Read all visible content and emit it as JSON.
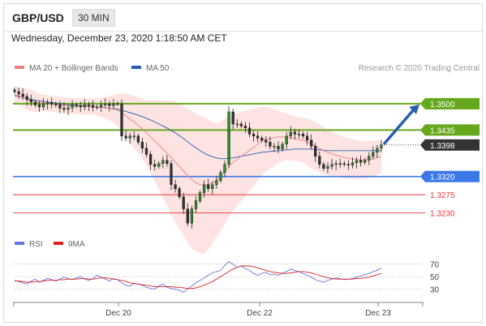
{
  "header": {
    "symbol": "GBP/USD",
    "timeframe": "30 MIN"
  },
  "datetime": "Wednesday, December 23, 2020 1:18:50 AM CET",
  "legend": {
    "ma20_label": "MA 20 + Bollinger Bands",
    "ma50_label": "MA 50",
    "credit": "Research © 2020 Trading Central"
  },
  "rsi_legend": {
    "rsi_label": "RSI",
    "ma_label": "9MA"
  },
  "colors": {
    "resistance": "#66a81c",
    "current": "#333333",
    "pivot": "#3b78e7",
    "support": "#e53935",
    "arrow": "#2a5db0",
    "ma20": "#f08080",
    "ma50": "#2a5db0",
    "band": "#fde0de",
    "rsi": "#6677dd",
    "rsi_ma": "#dd2222"
  },
  "chart_data": [
    {
      "type": "candlestick",
      "title": "GBP/USD",
      "timeframe": "30 MIN",
      "x_ticks": [
        "Dec 20",
        "Dec 22",
        "Dec 23"
      ],
      "y_range": [
        1.3185,
        1.356
      ],
      "levels": [
        {
          "label": "1.3500",
          "value": 1.35,
          "role": "resistance"
        },
        {
          "label": "1.3435",
          "value": 1.3435,
          "role": "resistance"
        },
        {
          "label": "1.3398",
          "value": 1.3398,
          "role": "current"
        },
        {
          "label": "1.3320",
          "value": 1.332,
          "role": "pivot"
        },
        {
          "label": "1.3275",
          "value": 1.3275,
          "role": "support"
        },
        {
          "label": "1.3230",
          "value": 1.323,
          "role": "support"
        }
      ],
      "close_series": [
        1.353,
        1.3524,
        1.3518,
        1.351,
        1.3504,
        1.3497,
        1.3492,
        1.35,
        1.3503,
        1.3499,
        1.3497,
        1.3489,
        1.3486,
        1.349,
        1.3497,
        1.3495,
        1.3492,
        1.3497,
        1.3496,
        1.3491,
        1.3492,
        1.3497,
        1.3499,
        1.3495,
        1.35,
        1.35,
        1.342,
        1.3415,
        1.342,
        1.342,
        1.3405,
        1.339,
        1.3375,
        1.335,
        1.3345,
        1.3352,
        1.336,
        1.3352,
        1.33,
        1.329,
        1.327,
        1.324,
        1.3205,
        1.324,
        1.326,
        1.328,
        1.33,
        1.329,
        1.33,
        1.331,
        1.333,
        1.335,
        1.348,
        1.345,
        1.345,
        1.3445,
        1.344,
        1.3425,
        1.342,
        1.3415,
        1.341,
        1.3405,
        1.3395,
        1.3395,
        1.3388,
        1.34,
        1.342,
        1.343,
        1.3425,
        1.3425,
        1.342,
        1.341,
        1.3395,
        1.337,
        1.335,
        1.334,
        1.3345,
        1.335,
        1.3352,
        1.3352,
        1.335,
        1.3348,
        1.3354,
        1.336,
        1.3355,
        1.336,
        1.337,
        1.338,
        1.339,
        1.3398
      ],
      "ma20_series": [
        1.3522,
        1.3519,
        1.3515,
        1.3512,
        1.3508,
        1.3505,
        1.3502,
        1.3502,
        1.3501,
        1.35,
        1.3499,
        1.3497,
        1.3496,
        1.3495,
        1.3495,
        1.3494,
        1.3494,
        1.3494,
        1.3493,
        1.3493,
        1.3492,
        1.3491,
        1.349,
        1.3489,
        1.3488,
        1.3484,
        1.3478,
        1.347,
        1.3462,
        1.3455,
        1.3447,
        1.3438,
        1.3428,
        1.3418,
        1.3408,
        1.3398,
        1.3388,
        1.3378,
        1.3367,
        1.3355,
        1.3345,
        1.3334,
        1.3322,
        1.3312,
        1.3305,
        1.33,
        1.3298,
        1.33,
        1.3305,
        1.3311,
        1.332,
        1.3332,
        1.3345,
        1.3355,
        1.3362,
        1.337,
        1.3377,
        1.3385,
        1.3392,
        1.34,
        1.3408,
        1.3412,
        1.3414,
        1.3416,
        1.3418,
        1.3418,
        1.3417,
        1.3416,
        1.3414,
        1.3412,
        1.341,
        1.3406,
        1.34,
        1.3395,
        1.339,
        1.3384,
        1.338,
        1.3376,
        1.3373,
        1.337,
        1.3367,
        1.3365,
        1.3363,
        1.3362,
        1.3361,
        1.3361,
        1.3362,
        1.3364,
        1.3367,
        1.337
      ],
      "ma50_series": [
        1.352,
        1.3518,
        1.3515,
        1.3513,
        1.3511,
        1.3509,
        1.3507,
        1.3505,
        1.3504,
        1.3503,
        1.3502,
        1.35,
        1.3499,
        1.3498,
        1.3497,
        1.3496,
        1.3495,
        1.3495,
        1.3494,
        1.3493,
        1.3492,
        1.3491,
        1.349,
        1.3489,
        1.3488,
        1.3487,
        1.3484,
        1.3481,
        1.3478,
        1.3475,
        1.3472,
        1.3468,
        1.3464,
        1.346,
        1.3455,
        1.345,
        1.3445,
        1.344,
        1.3434,
        1.3428,
        1.3421,
        1.3414,
        1.3406,
        1.3398,
        1.3391,
        1.3384,
        1.3378,
        1.3373,
        1.3369,
        1.3366,
        1.3364,
        1.3364,
        1.3365,
        1.3366,
        1.3368,
        1.337,
        1.3372,
        1.3374,
        1.3376,
        1.3378,
        1.338,
        1.3381,
        1.3382,
        1.3383,
        1.3384,
        1.3385,
        1.3386,
        1.3387,
        1.3388,
        1.3388,
        1.3388,
        1.3388,
        1.3388,
        1.3387,
        1.3386,
        1.3385,
        1.3384,
        1.3384,
        1.3384,
        1.3384,
        1.3384,
        1.3384,
        1.3384,
        1.3384,
        1.3384,
        1.3384,
        1.3384,
        1.3384,
        1.3384,
        1.3384
      ],
      "band_width_series": [
        0.0022,
        0.0022,
        0.0024,
        0.0026,
        0.0027,
        0.0025,
        0.0022,
        0.002,
        0.002,
        0.002,
        0.002,
        0.002,
        0.002,
        0.002,
        0.002,
        0.002,
        0.002,
        0.002,
        0.002,
        0.002,
        0.0022,
        0.0024,
        0.0026,
        0.003,
        0.0034,
        0.004,
        0.0048,
        0.0055,
        0.006,
        0.0065,
        0.007,
        0.0075,
        0.008,
        0.009,
        0.01,
        0.011,
        0.012,
        0.013,
        0.014,
        0.015,
        0.0155,
        0.016,
        0.0165,
        0.017,
        0.017,
        0.017,
        0.017,
        0.016,
        0.015,
        0.014,
        0.0135,
        0.013,
        0.0125,
        0.012,
        0.0115,
        0.011,
        0.0105,
        0.01,
        0.0095,
        0.009,
        0.0085,
        0.008,
        0.0075,
        0.007,
        0.0065,
        0.006,
        0.0058,
        0.0056,
        0.0055,
        0.0055,
        0.0056,
        0.0058,
        0.006,
        0.006,
        0.006,
        0.0058,
        0.0056,
        0.0055,
        0.0053,
        0.0052,
        0.0051,
        0.005,
        0.0049,
        0.0048,
        0.0047,
        0.0046,
        0.0045,
        0.0044,
        0.0043,
        0.0042
      ],
      "forecast_target": 1.35
    },
    {
      "type": "line",
      "title": "RSI",
      "y_ticks": [
        70,
        50,
        30
      ],
      "y_range": [
        15,
        80
      ],
      "series": [
        {
          "name": "RSI",
          "values": [
            44,
            42,
            40,
            38,
            43,
            46,
            41,
            44,
            47,
            45,
            43,
            46,
            49,
            47,
            45,
            48,
            50,
            46,
            44,
            47,
            52,
            49,
            46,
            43,
            47,
            45,
            40,
            36,
            35,
            39,
            38,
            36,
            33,
            31,
            30,
            35,
            38,
            33,
            31,
            30,
            28,
            25,
            30,
            35,
            40,
            44,
            48,
            52,
            56,
            58,
            60,
            68,
            74,
            70,
            65,
            67,
            63,
            60,
            55,
            52,
            55,
            57,
            53,
            54,
            52,
            56,
            58,
            62,
            60,
            58,
            55,
            52,
            49,
            45,
            43,
            41,
            44,
            46,
            48,
            47,
            45,
            46,
            47,
            49,
            51,
            53,
            55,
            58,
            60,
            64
          ]
        },
        {
          "name": "9MA",
          "values": [
            43,
            43,
            42,
            41,
            41,
            42,
            42,
            43,
            44,
            44,
            44,
            45,
            45,
            46,
            46,
            46,
            47,
            47,
            46,
            46,
            47,
            48,
            48,
            47,
            46,
            45,
            44,
            42,
            40,
            39,
            38,
            37,
            36,
            35,
            34,
            34,
            34,
            34,
            34,
            33,
            33,
            32,
            31,
            31,
            32,
            34,
            36,
            39,
            42,
            46,
            50,
            54,
            58,
            62,
            65,
            67,
            67,
            67,
            66,
            64,
            62,
            60,
            58,
            57,
            56,
            55,
            55,
            56,
            57,
            58,
            58,
            57,
            56,
            54,
            52,
            50,
            48,
            47,
            46,
            46,
            46,
            46,
            46,
            47,
            47,
            48,
            49,
            51,
            53,
            55
          ]
        }
      ]
    }
  ]
}
